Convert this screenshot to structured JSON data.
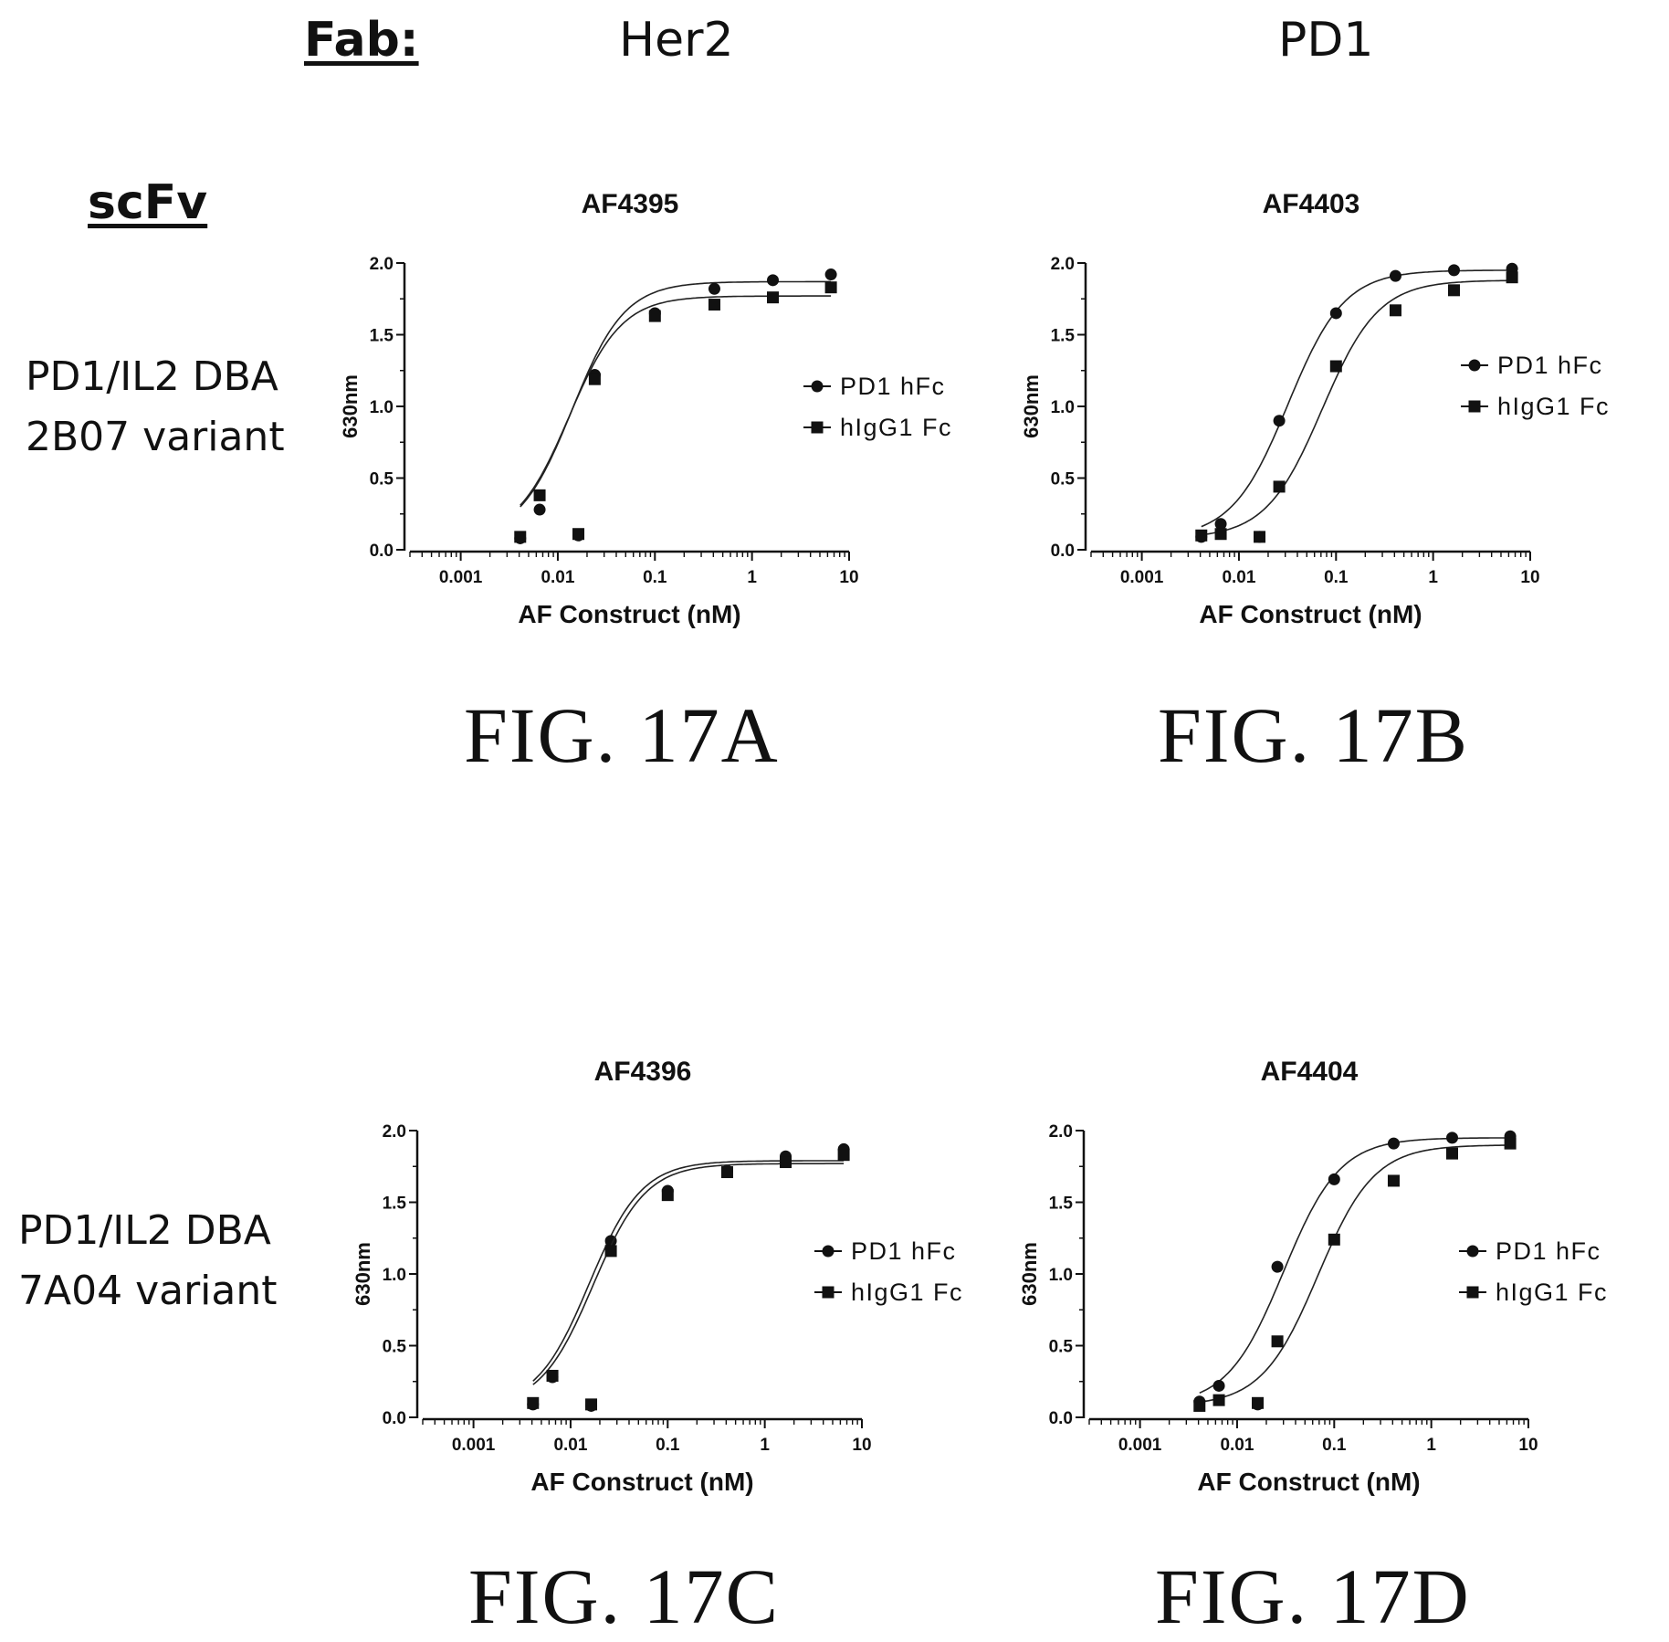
{
  "header": {
    "fab_label": "Fab:",
    "col1": "Her2",
    "col2": "PD1",
    "scfv_label": "scFv"
  },
  "rows": [
    {
      "line1": "PD1/IL2 DBA",
      "line2": "2B07 variant"
    },
    {
      "line1": "PD1/IL2 DBA",
      "line2": "7A04 variant"
    }
  ],
  "figure_labels": [
    "FIG. 17A",
    "FIG. 17B",
    "FIG. 17C",
    "FIG. 17D"
  ],
  "chart_data": [
    {
      "type": "scatter",
      "title": "AF4395",
      "xlabel": "AF Construct (nM)",
      "ylabel": "630nm",
      "xscale": "log",
      "xlim": [
        0.0003,
        10
      ],
      "ylim": [
        0,
        2.0
      ],
      "xticks": [
        "0.001",
        "0.01",
        "0.1",
        "1",
        "10"
      ],
      "yticks": [
        "0.0",
        "0.5",
        "1.0",
        "1.5",
        "2.0"
      ],
      "legend_position": "right",
      "x": [
        0.0041,
        0.0163,
        0.0065,
        0.024,
        0.1,
        0.41,
        1.64,
        6.5
      ],
      "series": [
        {
          "name": "PD1 hFc",
          "marker": "circle",
          "x": [
            0.0041,
            0.0163,
            0.0065,
            0.024,
            0.1,
            0.41,
            1.64,
            6.5
          ],
          "values": [
            0.08,
            0.1,
            0.28,
            1.22,
            1.65,
            1.82,
            1.88,
            1.92
          ],
          "fit": {
            "bottom": 0.08,
            "top": 1.87,
            "ec50": 0.014,
            "hill": 1.6
          }
        },
        {
          "name": "hIgG1 Fc",
          "marker": "square",
          "x": [
            0.0041,
            0.0163,
            0.0065,
            0.024,
            0.1,
            0.41,
            1.64,
            6.5
          ],
          "values": [
            0.09,
            0.11,
            0.38,
            1.19,
            1.63,
            1.71,
            1.76,
            1.83
          ],
          "fit": {
            "bottom": 0.08,
            "top": 1.77,
            "ec50": 0.013,
            "hill": 1.6
          }
        }
      ]
    },
    {
      "type": "scatter",
      "title": "AF4403",
      "xlabel": "AF Construct (nM)",
      "ylabel": "630nm",
      "xscale": "log",
      "xlim": [
        0.0003,
        10
      ],
      "ylim": [
        0,
        2.0
      ],
      "xticks": [
        "0.001",
        "0.01",
        "0.1",
        "1",
        "10"
      ],
      "yticks": [
        "0.0",
        "0.5",
        "1.0",
        "1.5",
        "2.0"
      ],
      "legend_position": "right",
      "series": [
        {
          "name": "PD1 hFc",
          "marker": "circle",
          "x": [
            0.0041,
            0.0163,
            0.0065,
            0.026,
            0.1,
            0.41,
            1.64,
            6.5
          ],
          "values": [
            0.09,
            0.09,
            0.18,
            0.9,
            1.65,
            1.91,
            1.95,
            1.96
          ],
          "fit": {
            "bottom": 0.08,
            "top": 1.95,
            "ec50": 0.032,
            "hill": 1.5
          }
        },
        {
          "name": "hIgG1 Fc",
          "marker": "square",
          "x": [
            0.0041,
            0.0163,
            0.0065,
            0.026,
            0.1,
            0.41,
            1.64,
            6.5
          ],
          "values": [
            0.1,
            0.09,
            0.11,
            0.44,
            1.28,
            1.67,
            1.81,
            1.9
          ],
          "fit": {
            "bottom": 0.08,
            "top": 1.88,
            "ec50": 0.072,
            "hill": 1.5
          }
        }
      ]
    },
    {
      "type": "scatter",
      "title": "AF4396",
      "xlabel": "AF Construct (nM)",
      "ylabel": "630nm",
      "xscale": "log",
      "xlim": [
        0.0003,
        10
      ],
      "ylim": [
        0,
        2.0
      ],
      "xticks": [
        "0.001",
        "0.01",
        "0.1",
        "1",
        "10"
      ],
      "yticks": [
        "0.0",
        "0.5",
        "1.0",
        "1.5",
        "2.0"
      ],
      "legend_position": "right",
      "series": [
        {
          "name": "PD1 hFc",
          "marker": "circle",
          "x": [
            0.0041,
            0.0163,
            0.0065,
            0.026,
            0.1,
            0.41,
            1.64,
            6.5
          ],
          "values": [
            0.09,
            0.08,
            0.28,
            1.23,
            1.58,
            1.72,
            1.82,
            1.87
          ],
          "fit": {
            "bottom": 0.07,
            "top": 1.79,
            "ec50": 0.0155,
            "hill": 1.6
          }
        },
        {
          "name": "hIgG1 Fc",
          "marker": "square",
          "x": [
            0.0041,
            0.0163,
            0.0065,
            0.026,
            0.1,
            0.41,
            1.64,
            6.5
          ],
          "values": [
            0.1,
            0.09,
            0.29,
            1.16,
            1.55,
            1.71,
            1.78,
            1.83
          ],
          "fit": {
            "bottom": 0.07,
            "top": 1.77,
            "ec50": 0.017,
            "hill": 1.6
          }
        }
      ]
    },
    {
      "type": "scatter",
      "title": "AF4404",
      "xlabel": "AF Construct (nM)",
      "ylabel": "630nm",
      "xscale": "log",
      "xlim": [
        0.0003,
        10
      ],
      "ylim": [
        0,
        2.0
      ],
      "xticks": [
        "0.001",
        "0.01",
        "0.1",
        "1",
        "10"
      ],
      "yticks": [
        "0.0",
        "0.5",
        "1.0",
        "1.5",
        "2.0"
      ],
      "legend_position": "right",
      "series": [
        {
          "name": "PD1 hFc",
          "marker": "circle",
          "x": [
            0.0041,
            0.0163,
            0.0065,
            0.026,
            0.1,
            0.41,
            1.64,
            6.5
          ],
          "values": [
            0.11,
            0.09,
            0.22,
            1.05,
            1.66,
            1.91,
            1.95,
            1.96
          ],
          "fit": {
            "bottom": 0.08,
            "top": 1.95,
            "ec50": 0.03,
            "hill": 1.5
          }
        },
        {
          "name": "hIgG1 Fc",
          "marker": "square",
          "x": [
            0.0041,
            0.0163,
            0.0065,
            0.026,
            0.1,
            0.41,
            1.64,
            6.5
          ],
          "values": [
            0.08,
            0.1,
            0.12,
            0.53,
            1.24,
            1.65,
            1.84,
            1.91
          ],
          "fit": {
            "bottom": 0.08,
            "top": 1.9,
            "ec50": 0.068,
            "hill": 1.5
          }
        }
      ]
    }
  ]
}
